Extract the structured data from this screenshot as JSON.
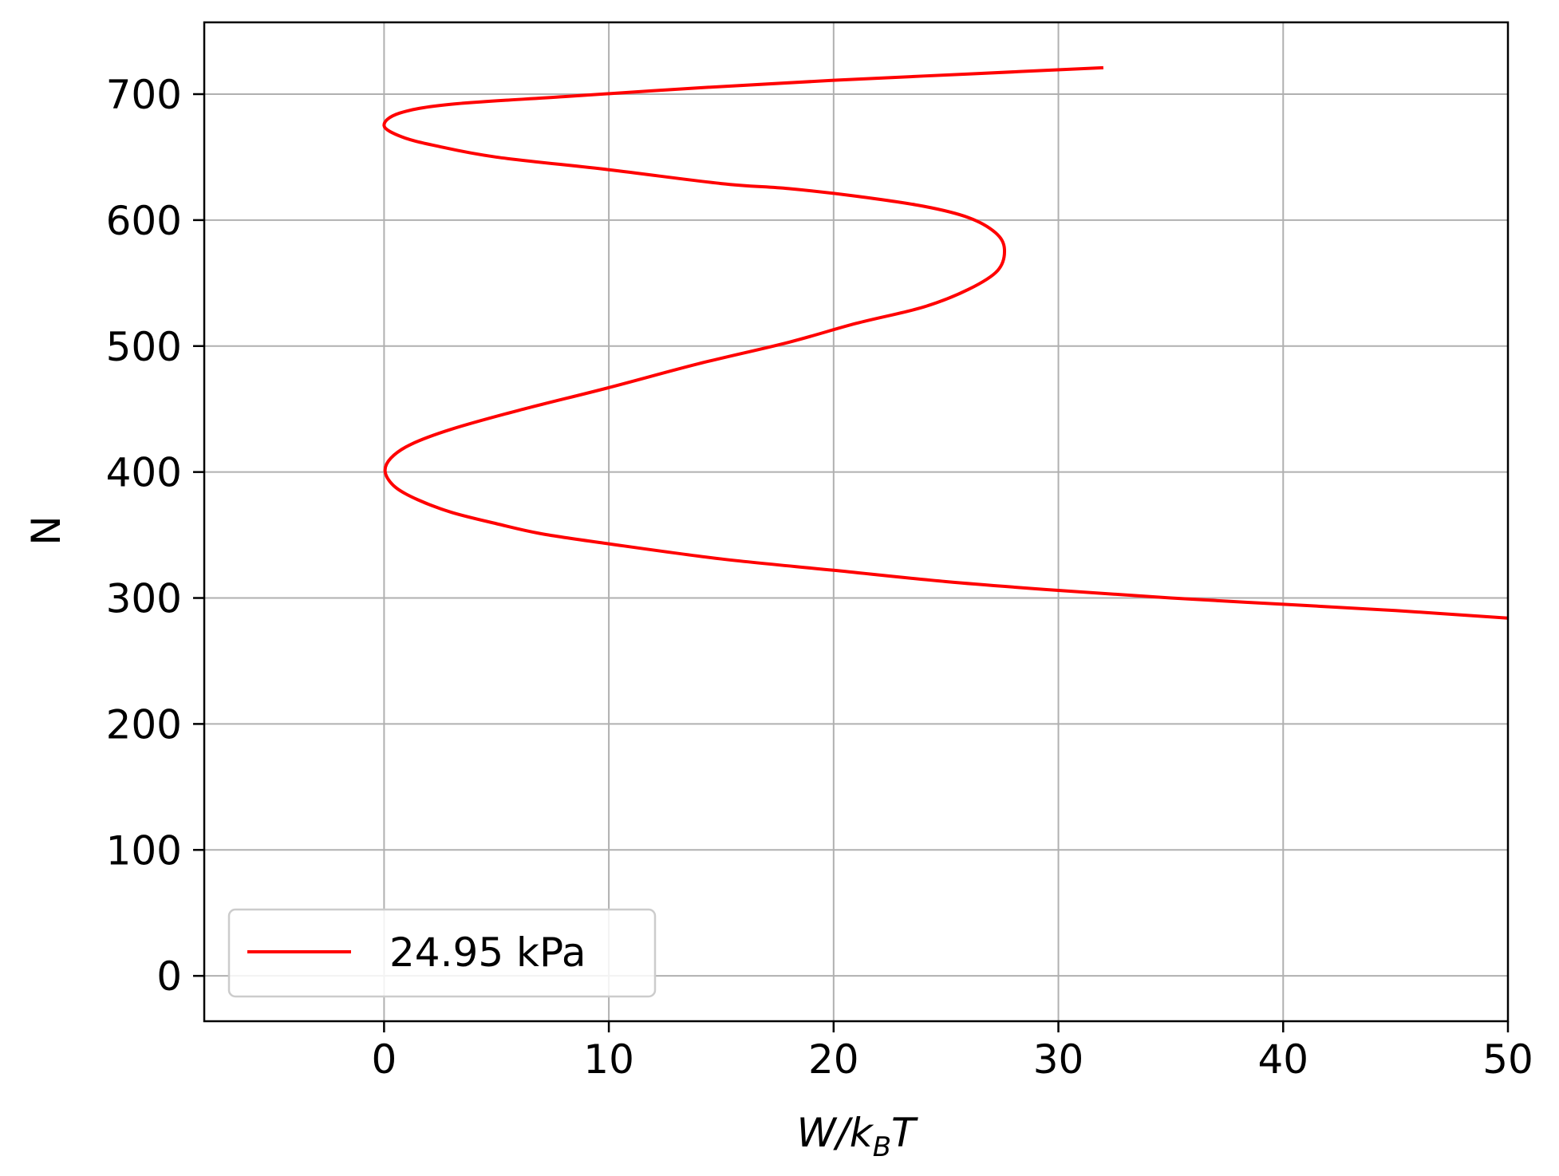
{
  "chart_data": {
    "type": "line",
    "title": "",
    "xlabel": {
      "main": "W/k",
      "subscript": "B",
      "tail": "T"
    },
    "ylabel": "N",
    "xlim": [
      -8,
      50
    ],
    "ylim": [
      -36,
      757
    ],
    "xticks": [
      0,
      10,
      20,
      30,
      40,
      50
    ],
    "yticks": [
      0,
      100,
      200,
      300,
      400,
      500,
      600,
      700
    ],
    "grid": true,
    "legend_position": "lower-left",
    "series": [
      {
        "name": "24.95 kPa",
        "color": "#ff0000",
        "x": [
          50,
          45,
          40,
          35,
          30,
          25,
          20,
          15,
          10,
          7,
          5,
          3,
          1.5,
          0.5,
          0.05,
          0.3,
          1.2,
          3,
          6,
          10,
          14,
          18,
          21,
          24,
          26,
          27.3,
          27.6,
          27.2,
          26,
          24,
          21,
          18,
          15,
          10,
          5,
          2.3,
          0.8,
          0,
          0.7,
          3,
          8,
          14,
          20,
          26,
          32
        ],
        "y": [
          284,
          290,
          295,
          300,
          306,
          313,
          322,
          331,
          343,
          351,
          359,
          368,
          378,
          388,
          400,
          411,
          422,
          434,
          449,
          467,
          486,
          503,
          518,
          531,
          545,
          560,
          577,
          590,
          602,
          611,
          619,
          625,
          629,
          640,
          650,
          659,
          666,
          675,
          685,
          692,
          698,
          705,
          711,
          716,
          721
        ]
      }
    ]
  }
}
